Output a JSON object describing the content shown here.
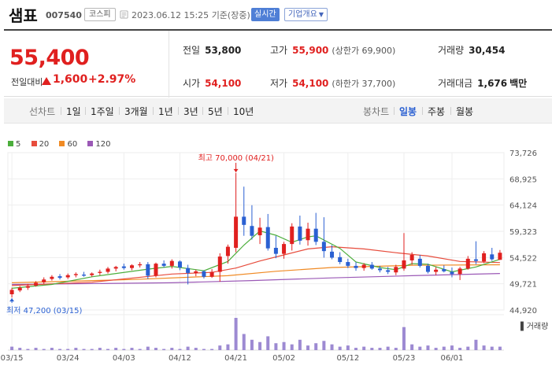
{
  "header": {
    "name": "샘표",
    "code": "007540",
    "market": "코스피",
    "timestamp": "2023.06.12 15:25",
    "timestamp_suffix": "기준(장중)",
    "realtime_label": "실시간",
    "company_label": "기업개요"
  },
  "quote": {
    "price": "55,400",
    "change_label": "전일대비",
    "change": "1,600",
    "change_pct": "+2.97%",
    "prev_close_label": "전일",
    "prev_close": "53,800",
    "high_label": "고가",
    "high": "55,900",
    "upper_limit": "(상한가 69,900)",
    "volume_label": "거래량",
    "volume": "30,454",
    "open_label": "시가",
    "open": "54,100",
    "low_label": "저가",
    "low": "54,100",
    "lower_limit": "(하한가 37,700)",
    "amount_label": "거래대금",
    "amount": "1,676",
    "amount_unit": "백만"
  },
  "toolbar": {
    "line_label": "선차트",
    "ranges": [
      "1일",
      "1주일",
      "3개월",
      "1년",
      "3년",
      "5년",
      "10년"
    ],
    "candle_label": "봉차트",
    "candle_types": [
      "일봉",
      "주봉",
      "월봉"
    ],
    "active_candle": "일봉"
  },
  "colors": {
    "up": "#e0201f",
    "down": "#2a60d2",
    "ma5": "#4cae3c",
    "ma20": "#e74c3c",
    "ma60": "#f08a24",
    "ma120": "#9b59b6",
    "volume": "#9d8ad2"
  },
  "legend": [
    {
      "label": "5",
      "color": "#4cae3c"
    },
    {
      "label": "20",
      "color": "#e74c3c"
    },
    {
      "label": "60",
      "color": "#f08a24"
    },
    {
      "label": "120",
      "color": "#9b59b6"
    }
  ],
  "chart_data": {
    "type": "candlestick",
    "y_ticks": [
      "73,726",
      "68,925",
      "64,124",
      "59,323",
      "54,522",
      "49,721",
      "44,920"
    ],
    "ylim": [
      44920,
      73726
    ],
    "x_labels": [
      "03/15",
      "03/24",
      "04/03",
      "04/12",
      "04/21",
      "05/02",
      "05/12",
      "05/23",
      "06/01"
    ],
    "x_label_index": [
      0,
      7,
      14,
      21,
      28,
      34,
      42,
      49,
      55
    ],
    "max_label": "최고 70,000 (04/21)",
    "max_index": 28,
    "min_label": "최저 47,200 (03/15)",
    "min_index": 0,
    "volume_label": "거래량",
    "candles": [
      {
        "o": 47800,
        "h": 49000,
        "l": 47200,
        "c": 48600
      },
      {
        "o": 48500,
        "h": 49300,
        "l": 48200,
        "c": 49000
      },
      {
        "o": 49000,
        "h": 49700,
        "l": 48600,
        "c": 49300
      },
      {
        "o": 49400,
        "h": 50200,
        "l": 49200,
        "c": 49900
      },
      {
        "o": 50000,
        "h": 50900,
        "l": 49700,
        "c": 50500
      },
      {
        "o": 50600,
        "h": 51300,
        "l": 50300,
        "c": 51000
      },
      {
        "o": 51100,
        "h": 51500,
        "l": 50500,
        "c": 50800
      },
      {
        "o": 50900,
        "h": 51600,
        "l": 50600,
        "c": 51300
      },
      {
        "o": 51300,
        "h": 51800,
        "l": 50900,
        "c": 51500
      },
      {
        "o": 51400,
        "h": 51900,
        "l": 51000,
        "c": 51200
      },
      {
        "o": 51300,
        "h": 51800,
        "l": 51000,
        "c": 51600
      },
      {
        "o": 51700,
        "h": 52300,
        "l": 51300,
        "c": 51900
      },
      {
        "o": 51900,
        "h": 52800,
        "l": 51600,
        "c": 52500
      },
      {
        "o": 52500,
        "h": 53000,
        "l": 52000,
        "c": 52800
      },
      {
        "o": 52900,
        "h": 53400,
        "l": 52300,
        "c": 52600
      },
      {
        "o": 52600,
        "h": 53300,
        "l": 52200,
        "c": 53100
      },
      {
        "o": 53100,
        "h": 53700,
        "l": 52700,
        "c": 53300
      },
      {
        "o": 53300,
        "h": 53700,
        "l": 50600,
        "c": 51200
      },
      {
        "o": 51200,
        "h": 53600,
        "l": 50900,
        "c": 53400
      },
      {
        "o": 53400,
        "h": 54000,
        "l": 52700,
        "c": 53000
      },
      {
        "o": 53000,
        "h": 54200,
        "l": 52500,
        "c": 53900
      },
      {
        "o": 53800,
        "h": 54000,
        "l": 52200,
        "c": 52700
      },
      {
        "o": 52600,
        "h": 53200,
        "l": 49600,
        "c": 51700
      },
      {
        "o": 51700,
        "h": 52300,
        "l": 51100,
        "c": 52000
      },
      {
        "o": 52000,
        "h": 52200,
        "l": 50700,
        "c": 51000
      },
      {
        "o": 51000,
        "h": 52400,
        "l": 50800,
        "c": 51900
      },
      {
        "o": 51900,
        "h": 55300,
        "l": 50100,
        "c": 54700
      },
      {
        "o": 54800,
        "h": 56900,
        "l": 53400,
        "c": 56500
      },
      {
        "o": 56300,
        "h": 70000,
        "l": 55500,
        "c": 62000
      },
      {
        "o": 62000,
        "h": 67500,
        "l": 58500,
        "c": 60500
      },
      {
        "o": 60300,
        "h": 64100,
        "l": 57800,
        "c": 58500
      },
      {
        "o": 58600,
        "h": 61800,
        "l": 57000,
        "c": 60000
      },
      {
        "o": 60100,
        "h": 62500,
        "l": 55800,
        "c": 56200
      },
      {
        "o": 56300,
        "h": 58500,
        "l": 54400,
        "c": 55200
      },
      {
        "o": 55200,
        "h": 57400,
        "l": 54300,
        "c": 57000
      },
      {
        "o": 57000,
        "h": 60800,
        "l": 55800,
        "c": 60200
      },
      {
        "o": 60200,
        "h": 62200,
        "l": 56900,
        "c": 57600
      },
      {
        "o": 57700,
        "h": 60900,
        "l": 56700,
        "c": 59800
      },
      {
        "o": 59800,
        "h": 62700,
        "l": 56800,
        "c": 57400
      },
      {
        "o": 57400,
        "h": 61900,
        "l": 54500,
        "c": 55700
      },
      {
        "o": 55600,
        "h": 56800,
        "l": 54200,
        "c": 54500
      },
      {
        "o": 54600,
        "h": 55500,
        "l": 53300,
        "c": 53700
      },
      {
        "o": 53700,
        "h": 54300,
        "l": 52600,
        "c": 53000
      },
      {
        "o": 53000,
        "h": 53700,
        "l": 52100,
        "c": 52600
      },
      {
        "o": 52600,
        "h": 53500,
        "l": 52100,
        "c": 53200
      },
      {
        "o": 53200,
        "h": 53700,
        "l": 52300,
        "c": 52500
      },
      {
        "o": 52500,
        "h": 53000,
        "l": 51800,
        "c": 52200
      },
      {
        "o": 52200,
        "h": 52800,
        "l": 51500,
        "c": 51900
      },
      {
        "o": 51800,
        "h": 53200,
        "l": 51300,
        "c": 52800
      },
      {
        "o": 52500,
        "h": 59000,
        "l": 52100,
        "c": 54000
      },
      {
        "o": 54000,
        "h": 55500,
        "l": 53200,
        "c": 55000
      },
      {
        "o": 54300,
        "h": 55000,
        "l": 52700,
        "c": 53000
      },
      {
        "o": 53000,
        "h": 53400,
        "l": 51600,
        "c": 51900
      },
      {
        "o": 51900,
        "h": 52800,
        "l": 51300,
        "c": 52300
      },
      {
        "o": 52400,
        "h": 53100,
        "l": 51800,
        "c": 52000
      },
      {
        "o": 51900,
        "h": 52700,
        "l": 50900,
        "c": 51500
      },
      {
        "o": 51500,
        "h": 52800,
        "l": 50400,
        "c": 52500
      },
      {
        "o": 52500,
        "h": 54800,
        "l": 52300,
        "c": 54300
      },
      {
        "o": 54200,
        "h": 57500,
        "l": 53300,
        "c": 53900
      },
      {
        "o": 53800,
        "h": 55700,
        "l": 53500,
        "c": 55300
      },
      {
        "o": 55100,
        "h": 56300,
        "l": 53900,
        "c": 54200
      },
      {
        "o": 54100,
        "h": 55900,
        "l": 54100,
        "c": 55400
      }
    ],
    "ma5": [
      [
        0,
        48900
      ],
      [
        5,
        49600
      ],
      [
        10,
        51000
      ],
      [
        17,
        52400
      ],
      [
        20,
        52900
      ],
      [
        24,
        52100
      ],
      [
        27,
        53800
      ],
      [
        29,
        56800
      ],
      [
        31,
        59400
      ],
      [
        33,
        58600
      ],
      [
        35,
        57300
      ],
      [
        37,
        58300
      ],
      [
        38,
        58500
      ],
      [
        41,
        56200
      ],
      [
        43,
        53700
      ],
      [
        46,
        52700
      ],
      [
        48,
        52300
      ],
      [
        50,
        53400
      ],
      [
        52,
        53300
      ],
      [
        55,
        51900
      ],
      [
        58,
        52800
      ],
      [
        61,
        54200
      ]
    ],
    "ma20": [
      [
        0,
        49400
      ],
      [
        10,
        50000
      ],
      [
        20,
        51500
      ],
      [
        25,
        51800
      ],
      [
        28,
        52600
      ],
      [
        31,
        53900
      ],
      [
        34,
        55000
      ],
      [
        37,
        56100
      ],
      [
        40,
        56500
      ],
      [
        44,
        56100
      ],
      [
        48,
        55400
      ],
      [
        52,
        54800
      ],
      [
        56,
        53800
      ],
      [
        61,
        53600
      ]
    ],
    "ma60": [
      [
        0,
        49900
      ],
      [
        15,
        50500
      ],
      [
        27,
        51200
      ],
      [
        33,
        52000
      ],
      [
        40,
        52700
      ],
      [
        50,
        53100
      ],
      [
        61,
        53200
      ]
    ],
    "ma120": [
      [
        0,
        49600
      ],
      [
        20,
        49900
      ],
      [
        30,
        50300
      ],
      [
        40,
        50800
      ],
      [
        50,
        51200
      ],
      [
        61,
        51600
      ]
    ],
    "volume": [
      3,
      2,
      1,
      2,
      1,
      2,
      1,
      1,
      2,
      1,
      1,
      2,
      1,
      2,
      1,
      2,
      1,
      3,
      2,
      1,
      2,
      1,
      3,
      2,
      1,
      1,
      4,
      5,
      28,
      14,
      9,
      7,
      12,
      6,
      7,
      5,
      9,
      4,
      6,
      8,
      5,
      3,
      4,
      2,
      3,
      2,
      2,
      3,
      2,
      20,
      5,
      3,
      4,
      2,
      3,
      4,
      2,
      3,
      9,
      4,
      3,
      3
    ]
  }
}
